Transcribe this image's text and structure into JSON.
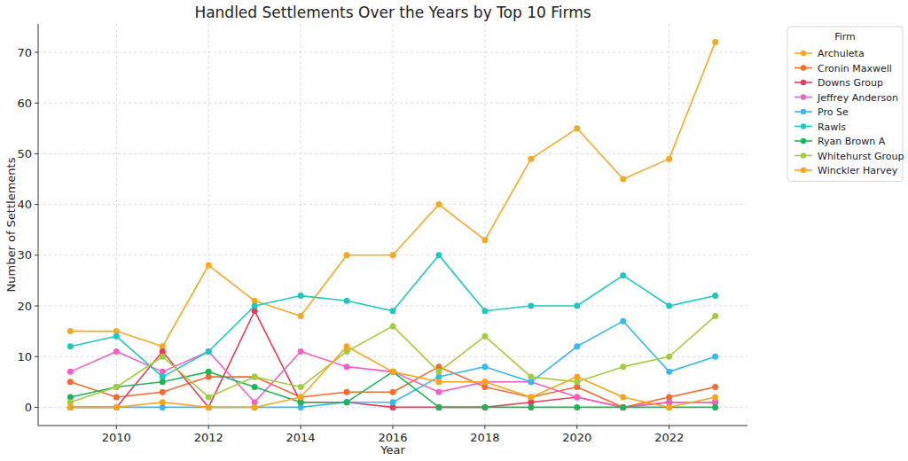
{
  "chart_data": {
    "type": "line",
    "title": "Handled Settlements Over the Years by Top 10 Firms",
    "x_label": "Year",
    "y_label": "Number of Settlements",
    "legend_title": "Firm",
    "x": [
      2009,
      2010,
      2011,
      2012,
      2013,
      2014,
      2015,
      2016,
      2017,
      2018,
      2019,
      2020,
      2021,
      2022,
      2023
    ],
    "series": [
      {
        "name": "Archuleta",
        "color": "#f7a823",
        "values": [
          15,
          15,
          12,
          28,
          21,
          18,
          30,
          30,
          40,
          33,
          49,
          55,
          45,
          49,
          72
        ]
      },
      {
        "name": "Cronin Maxwell",
        "color": "#f26b30",
        "values": [
          5,
          2,
          3,
          6,
          6,
          2,
          3,
          3,
          8,
          4,
          2,
          4,
          0,
          2,
          4
        ]
      },
      {
        "name": "Downs Group",
        "color": "#e83a5c",
        "values": [
          0,
          0,
          11,
          0,
          19,
          1,
          1,
          0,
          0,
          0,
          1,
          2,
          0,
          1,
          1
        ]
      },
      {
        "name": "Jeffrey Anderson",
        "color": "#f25fc4",
        "values": [
          7,
          11,
          7,
          11,
          1,
          11,
          8,
          7,
          3,
          5,
          5,
          2,
          0,
          1,
          1
        ]
      },
      {
        "name": "Pro Se",
        "color": "#36b8f0",
        "values": [
          0,
          0,
          0,
          0,
          0,
          0,
          1,
          1,
          6,
          8,
          5,
          12,
          17,
          7,
          10
        ]
      },
      {
        "name": "Rawls",
        "color": "#1ec8c0",
        "values": [
          12,
          14,
          6,
          11,
          20,
          22,
          21,
          19,
          30,
          19,
          20,
          20,
          26,
          20,
          22
        ]
      },
      {
        "name": "Ryan Brown A",
        "color": "#20b45a",
        "values": [
          2,
          4,
          5,
          7,
          4,
          1,
          1,
          7,
          0,
          0,
          0,
          0,
          0,
          0,
          0
        ]
      },
      {
        "name": "Whitehurst Group",
        "color": "#a2cc3c",
        "values": [
          1,
          4,
          10,
          2,
          6,
          4,
          11,
          16,
          7,
          14,
          6,
          5,
          8,
          10,
          18
        ]
      },
      {
        "name": "Winckler Harvey",
        "color": "#f9a51c",
        "values": [
          0,
          0,
          1,
          0,
          0,
          2,
          12,
          7,
          5,
          5,
          2,
          6,
          2,
          0,
          2
        ]
      }
    ],
    "xlim": [
      2008.3,
      2023.7
    ],
    "xticks": [
      2010,
      2012,
      2014,
      2016,
      2018,
      2020,
      2022
    ],
    "ylim": [
      -3.6,
      75.6
    ],
    "yticks": [
      0,
      10,
      20,
      30,
      40,
      50,
      60,
      70
    ],
    "grid": true,
    "legend": "right",
    "marker": "circle"
  }
}
